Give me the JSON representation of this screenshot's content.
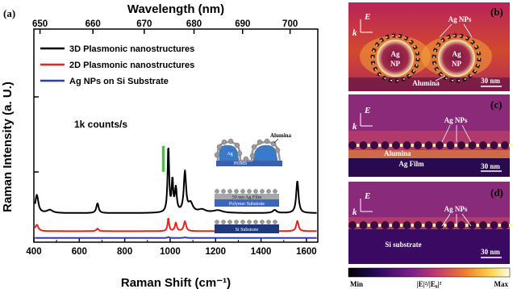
{
  "panel_a": {
    "label": "(a)",
    "chart_data": {
      "type": "line",
      "xlabel": "Raman Shift (cm⁻¹)",
      "ylabel": "Raman Intensity (a. U.)",
      "top_xlabel": "Wavelength (nm)",
      "xlim": [
        400,
        1650
      ],
      "x_ticks": [
        400,
        600,
        800,
        1000,
        1200,
        1400,
        1600
      ],
      "top_ticks": [
        {
          "label": "650",
          "shift": 427
        },
        {
          "label": "660",
          "shift": 660
        },
        {
          "label": "670",
          "shift": 886
        },
        {
          "label": "680",
          "shift": 1105
        },
        {
          "label": "690",
          "shift": 1319
        },
        {
          "label": "700",
          "shift": 1528
        }
      ],
      "grid": false,
      "legend_position": "top-left",
      "series": [
        {
          "name": "3D Plasmonic nanostructures",
          "color": "#000000",
          "baseline": 1.0,
          "peaks": [
            [
              413,
              0.7,
              8
            ],
            [
              470,
              0.12,
              15
            ],
            [
              680,
              0.38,
              6
            ],
            [
              992,
              2.55,
              4
            ],
            [
              1010,
              1.2,
              4
            ],
            [
              1025,
              0.9,
              5
            ],
            [
              1065,
              1.55,
              6
            ],
            [
              1090,
              0.35,
              12
            ],
            [
              1140,
              0.12,
              20
            ],
            [
              1210,
              0.1,
              25
            ],
            [
              1460,
              0.12,
              10
            ],
            [
              1560,
              1.25,
              6
            ]
          ]
        },
        {
          "name": "2D Plasmonic nanostructures",
          "color": "#e8231f",
          "baseline": 0.3,
          "peaks": [
            [
              413,
              0.25,
              8
            ],
            [
              680,
              0.1,
              6
            ],
            [
              992,
              0.5,
              4
            ],
            [
              1025,
              0.32,
              5
            ],
            [
              1065,
              0.38,
              6
            ],
            [
              1560,
              0.4,
              6
            ]
          ]
        },
        {
          "name": "Ag NPs on Si Substrate",
          "color": "#2a3cb4",
          "baseline": 0.04,
          "peaks": [
            [
              992,
              0.03,
              4
            ],
            [
              1065,
              0.02,
              6
            ]
          ]
        }
      ],
      "annotation": "1k counts/s",
      "scalebar_value": 1.0,
      "scalebar_position_shift": 970
    },
    "schematics": {
      "alumina": "Alumina",
      "pdms": "PDMS",
      "ag_film": "50 nm Ag Film",
      "polymer": "Polymer Substrate",
      "si": "Si Substrate"
    }
  },
  "panel_b": {
    "label": "(b)",
    "ag_nps": "Ag NPs",
    "np1_top": "Ag",
    "np1_bottom": "NP",
    "np2_top": "Ag",
    "np2_bottom": "NP",
    "alumina": "Alumina",
    "scale": "30 nm"
  },
  "panel_c": {
    "label": "(c)",
    "ag_nps": "Ag NPs",
    "alumina": "Alumina",
    "ag_film": "Ag Film",
    "scale": "30 nm"
  },
  "panel_d": {
    "label": "(d)",
    "ag_nps": "Ag NPs",
    "substrate": "Si substrate",
    "scale": "30 nm"
  },
  "vectors": {
    "e": "E",
    "k": "k"
  },
  "colorbar": {
    "min": "Min",
    "max": "Max",
    "title": "|E|²/|E₀|²",
    "colors": [
      "#000000",
      "#2b0a5e",
      "#7a1b8c",
      "#c43a6e",
      "#f07b2a",
      "#fcd34d",
      "#fffbe0"
    ]
  }
}
